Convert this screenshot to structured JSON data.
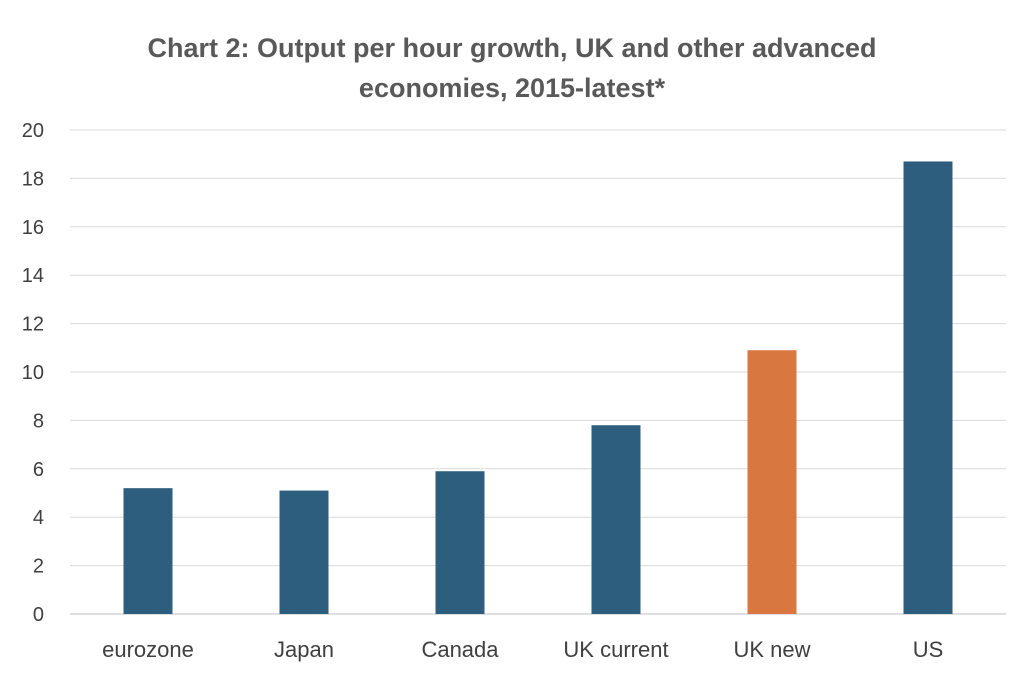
{
  "chart_data": {
    "type": "bar",
    "title_lines": [
      "Chart 2: Output per hour growth, UK and other advanced",
      "economies, 2015-latest*"
    ],
    "categories": [
      "eurozone",
      "Japan",
      "Canada",
      "UK current",
      "UK new",
      "US"
    ],
    "values": [
      5.2,
      5.1,
      5.9,
      7.8,
      10.9,
      18.7
    ],
    "bar_colors": [
      "#2e5e7e",
      "#2e5e7e",
      "#2e5e7e",
      "#2e5e7e",
      "#d97740",
      "#2e5e7e"
    ],
    "yticks": [
      "0",
      "2",
      "4",
      "6",
      "8",
      "10",
      "12",
      "14",
      "16",
      "18",
      "20"
    ],
    "ylim": [
      0,
      20
    ],
    "grid": true,
    "legend": "none"
  }
}
